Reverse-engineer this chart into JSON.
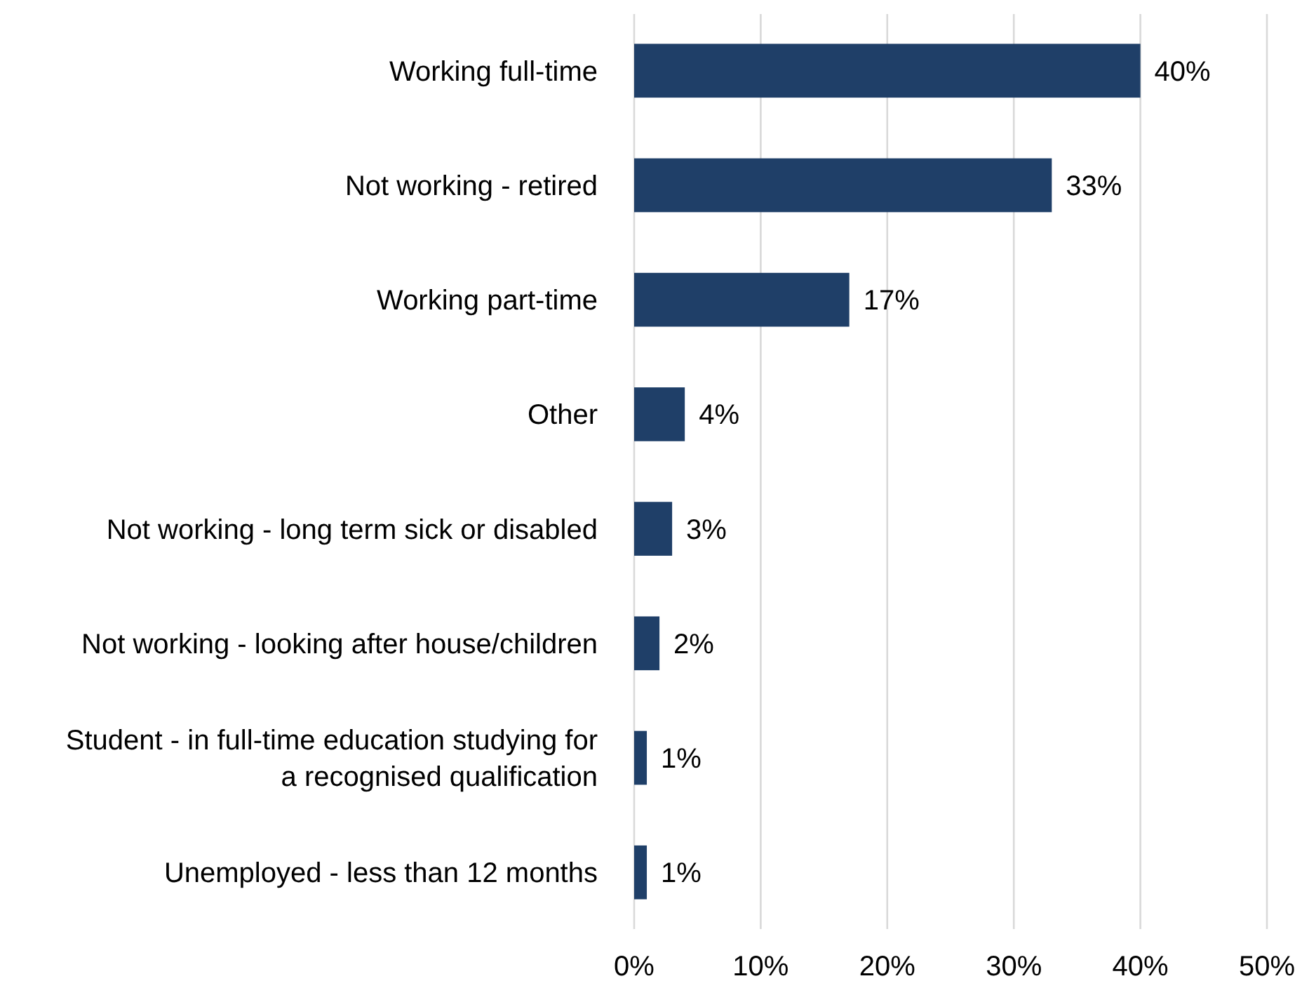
{
  "chart_data": {
    "type": "bar",
    "orientation": "horizontal",
    "categories": [
      "Working full-time",
      "Not working - retired",
      "Working part-time",
      "Other",
      "Not working - long term sick or disabled",
      "Not working - looking after house/children",
      "Student - in full-time education studying for a recognised qualification",
      "Unemployed - less than 12 months"
    ],
    "values": [
      40,
      33,
      17,
      4,
      3,
      2,
      1,
      1
    ],
    "value_labels": [
      "40%",
      "33%",
      "17%",
      "4%",
      "3%",
      "2%",
      "1%",
      "1%"
    ],
    "color": "#1f3f68",
    "xlim": [
      0,
      50
    ],
    "xticks": [
      {
        "value": 0,
        "label": "0%"
      },
      {
        "value": 10,
        "label": "10%"
      },
      {
        "value": 20,
        "label": "20%"
      },
      {
        "value": 30,
        "label": "30%"
      },
      {
        "value": 40,
        "label": "40%"
      },
      {
        "value": 50,
        "label": "50%"
      }
    ],
    "grid": "x"
  }
}
